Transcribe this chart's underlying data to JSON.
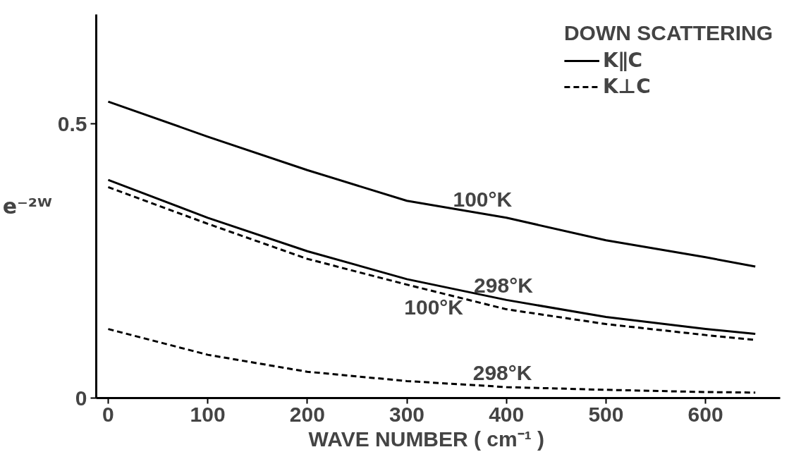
{
  "chart_data": {
    "type": "line",
    "xlabel": "WAVE   NUMBER   ( cm⁻¹ )",
    "ylabel": "e⁻²ᵂ",
    "legend_title": "DOWN SCATTERING",
    "x": [
      0,
      100,
      200,
      300,
      400,
      500,
      600,
      650
    ],
    "series": [
      {
        "name": "K∥C",
        "color": "#000000",
        "line_style": "solid",
        "values": [
          0.541,
          0.477,
          0.416,
          0.36,
          0.329,
          0.288,
          0.257,
          0.24
        ]
      },
      {
        "color": "#000000",
        "line_style": "solid",
        "values": [
          0.398,
          0.329,
          0.268,
          0.217,
          0.179,
          0.148,
          0.126,
          0.117
        ]
      },
      {
        "name": "K⊥C",
        "color": "#000000",
        "line_style": "dashed",
        "values": [
          0.385,
          0.318,
          0.254,
          0.207,
          0.162,
          0.135,
          0.115,
          0.106
        ]
      },
      {
        "color": "#000000",
        "line_style": "dashed",
        "values": [
          0.126,
          0.079,
          0.048,
          0.031,
          0.02,
          0.015,
          0.011,
          0.01
        ]
      }
    ],
    "annotations": [
      {
        "text": "100°K",
        "x": 376,
        "y": 0.336
      },
      {
        "text": "298°K",
        "x": 397,
        "y": 0.18
      },
      {
        "text": "100°K",
        "x": 327,
        "y": 0.195
      },
      {
        "text": "298°K",
        "x": 396,
        "y": 0.02
      }
    ],
    "xlim": [
      -12,
      675
    ],
    "ylim": [
      0,
      0.7
    ],
    "xticks": [
      0,
      100,
      200,
      300,
      400,
      500,
      600
    ],
    "yticks": [
      0,
      0.5
    ],
    "grid": false,
    "legend": "top right",
    "marker": "none"
  }
}
